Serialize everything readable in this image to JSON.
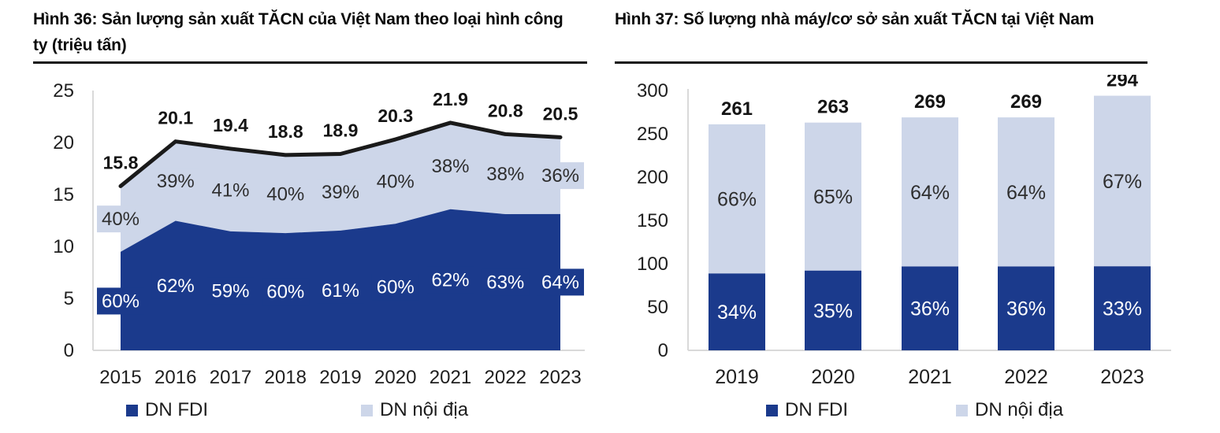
{
  "colors": {
    "background": "#FFFFFF",
    "fdi_blue": "#1B3A8C",
    "domestic_light_blue": "#CDD6E9",
    "total_line_black": "#1A1A1A",
    "axis_gray": "#D9D9D9",
    "text_dark": "#1F1F1F",
    "divider_black": "#141414",
    "pct_on_dark": "#FFFFFF",
    "pct_on_light": "#2E2E2E",
    "total_label": "#141414"
  },
  "chart_data": [
    {
      "type": "area",
      "stacked": true,
      "title": "Hình 36: Sản lượng sản xuất TĂCN của Việt Nam theo loại hình công ty (triệu tấn)",
      "unit": "triệu tấn",
      "x": [
        "2015",
        "2016",
        "2017",
        "2018",
        "2019",
        "2020",
        "2021",
        "2022",
        "2023"
      ],
      "series": [
        {
          "name": "DN FDI",
          "color": "#1B3A8C",
          "pct": [
            60,
            62,
            59,
            60,
            61,
            60,
            62,
            63,
            64
          ]
        },
        {
          "name": "DN nội địa",
          "color": "#CDD6E9",
          "pct": [
            40,
            39,
            41,
            40,
            39,
            40,
            38,
            38,
            36
          ]
        }
      ],
      "totals": [
        15.8,
        20.1,
        19.4,
        18.8,
        18.9,
        20.3,
        21.9,
        20.8,
        20.5
      ],
      "total_line_color": "#1A1A1A",
      "ylim": [
        0,
        25
      ],
      "yticks": [
        0,
        5,
        10,
        15,
        20,
        25
      ],
      "grid": false,
      "legend_position": "bottom"
    },
    {
      "type": "bar",
      "stacked": true,
      "title": "Hình 37: Số lượng nhà máy/cơ sở sản xuất TĂCN tại Việt Nam",
      "x": [
        "2019",
        "2020",
        "2021",
        "2022",
        "2023"
      ],
      "series": [
        {
          "name": "DN FDI",
          "color": "#1B3A8C",
          "pct": [
            34,
            35,
            36,
            36,
            33
          ]
        },
        {
          "name": "DN nội địa",
          "color": "#CDD6E9",
          "pct": [
            66,
            65,
            64,
            64,
            67
          ]
        }
      ],
      "totals": [
        261,
        263,
        269,
        269,
        294
      ],
      "ylim": [
        0,
        300
      ],
      "yticks": [
        0,
        50,
        100,
        150,
        200,
        250,
        300
      ],
      "grid": false,
      "legend_position": "bottom"
    }
  ]
}
